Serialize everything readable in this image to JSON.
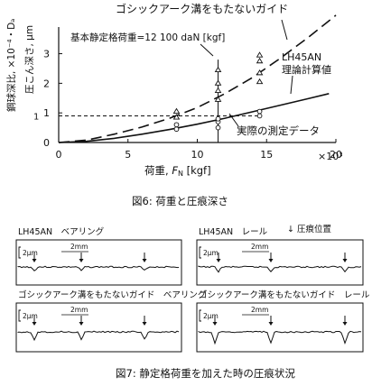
{
  "chart_data": [
    {
      "type": "line",
      "xlabel": "荷重, ",
      "xlabel_italic": "F",
      "xlabel_sub": "N",
      "xlabel_unit": " [kgf]",
      "ylabel_left": "鋼球深比, ×10⁻⁴・Dₐ",
      "ylabel_right": "圧こん深さ, μm",
      "x_multiplier": "×10³",
      "xlim": [
        0,
        20000
      ],
      "ylim": [
        0,
        3.9
      ],
      "x_ticks": [
        "0",
        "5",
        "10",
        "15",
        "20"
      ],
      "y_ticks": [
        "0",
        "1",
        "2",
        "3"
      ],
      "y_marker": "1",
      "caption": "図6: 荷重と圧痕深さ",
      "annotations": {
        "gothic_arch": "ゴシックアーク溝をもたないガイド",
        "static_load": "基本静定格荷重=12 100 daN [kgf]",
        "lh45an_1": "LH45AN",
        "lh45an_2": "理論計算値",
        "measured": "実際の測定データ"
      },
      "series": [
        {
          "x": [
            0,
            2000,
            4000,
            6000,
            8000,
            10000,
            12000,
            14000,
            16000,
            18000,
            20000
          ],
          "values": [
            0,
            0.08,
            0.28,
            0.52,
            0.82,
            1.18,
            1.65,
            2.2,
            2.85,
            3.55,
            4.3
          ],
          "style": "dashed"
        },
        {
          "x": [
            0,
            2000,
            4000,
            6000,
            8000,
            10000,
            12000,
            14000,
            16000,
            18000,
            19500
          ],
          "values": [
            0,
            0.04,
            0.14,
            0.28,
            0.44,
            0.62,
            0.82,
            1.04,
            1.26,
            1.48,
            1.65
          ],
          "style": "solid"
        }
      ],
      "points_triangle": [
        {
          "x": 8500,
          "values": [
            0.85,
            1.05
          ]
        },
        {
          "x": 11500,
          "values": [
            1.45,
            1.75,
            2.0,
            2.45
          ]
        },
        {
          "x": 14500,
          "values": [
            2.05,
            2.35,
            2.75,
            2.95
          ]
        }
      ],
      "points_circle": [
        {
          "x": 8500,
          "values": [
            0.45,
            0.6
          ]
        },
        {
          "x": 11500,
          "values": [
            0.5,
            0.7,
            0.8
          ]
        },
        {
          "x": 14500,
          "values": [
            0.9,
            1.05
          ]
        }
      ],
      "threshold_y": 0.9,
      "vertical_line_x": 11500
    }
  ],
  "figure7": {
    "legend": "↓ 圧痕位置",
    "caption": "図7: 静定格荷重を加えた時の圧痕状況",
    "panels": [
      {
        "title": "LH45AN　ベアリング",
        "scale": "2μm",
        "spacing": "2mm"
      },
      {
        "title": "LH45AN　レール",
        "scale": "2μm",
        "spacing": "2mm"
      },
      {
        "title": "ゴシックアーク溝をもたないガイド　ベアリング",
        "scale": "2μm",
        "spacing": "2mm"
      },
      {
        "title": "ゴシックアーク溝をもたないガイド　レール",
        "scale": "2μm",
        "spacing": "2mm"
      }
    ]
  }
}
